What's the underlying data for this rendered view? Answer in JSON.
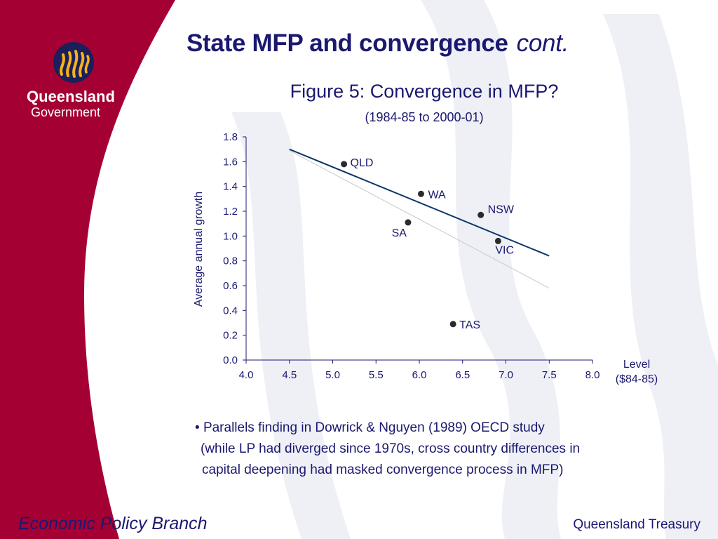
{
  "slide": {
    "title": "State MFP and convergence",
    "title_suffix": "cont.",
    "figure_title": "Figure 5: Convergence in MFP?",
    "figure_subtitle": "(1984-85 to 2000-01)",
    "bullet_marker": "•",
    "bullet_lines": [
      "Parallels finding in Dowrick & Nguyen (1989) OECD study",
      "(while LP had diverged since 1970s, cross country differences in",
      "capital deepening had masked convergence process in MFP)"
    ]
  },
  "logo": {
    "name": "Queensland",
    "subtitle": "Government"
  },
  "footer": {
    "left": "Economic Policy Branch",
    "right": "Queensland Treasury"
  },
  "colors": {
    "brand_red": "#a50034",
    "text_navy": "#1b1870",
    "trend_line": "#0c3768",
    "secondary_line": "#c8c8c8",
    "point": "#2b2b2b"
  },
  "chart_data": {
    "type": "scatter",
    "title": "Figure 5: Convergence in MFP?",
    "subtitle": "(1984-85 to 2000-01)",
    "xlabel": "Level ($84-85)",
    "xlabel_lines": [
      "Level",
      "($84-85)"
    ],
    "ylabel": "Average annual growth",
    "xlim": [
      4.0,
      8.0
    ],
    "ylim": [
      0.0,
      1.8
    ],
    "xticks": [
      "4.0",
      "4.5",
      "5.0",
      "5.5",
      "6.0",
      "6.5",
      "7.0",
      "7.5",
      "8.0"
    ],
    "yticks": [
      "0.0",
      "0.2",
      "0.4",
      "0.6",
      "0.8",
      "1.0",
      "1.2",
      "1.4",
      "1.6",
      "1.8"
    ],
    "grid": false,
    "points": [
      {
        "label": "QLD",
        "x": 5.13,
        "y": 1.58
      },
      {
        "label": "WA",
        "x": 6.02,
        "y": 1.34
      },
      {
        "label": "NSW",
        "x": 6.71,
        "y": 1.17
      },
      {
        "label": "SA",
        "x": 5.87,
        "y": 1.11
      },
      {
        "label": "VIC",
        "x": 6.91,
        "y": 0.96
      },
      {
        "label": "TAS",
        "x": 6.39,
        "y": 0.29
      }
    ],
    "trend_lines": [
      {
        "style": "primary",
        "x": [
          4.5,
          7.5
        ],
        "y": [
          1.7,
          0.84
        ]
      },
      {
        "style": "secondary",
        "x": [
          4.5,
          7.5
        ],
        "y": [
          1.69,
          0.58
        ]
      }
    ]
  }
}
